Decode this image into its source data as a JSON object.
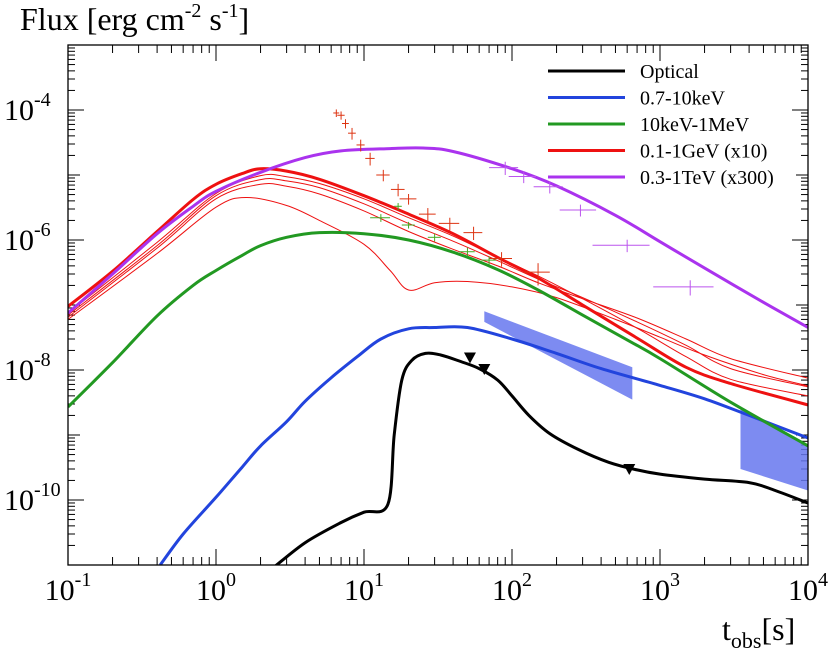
{
  "chart_data": {
    "type": "line",
    "title": "Flux [erg cm^-2 s^-1]",
    "ylabel": "Flux [erg cm^-2 s^-1]",
    "xlabel": "t_obs[s]",
    "xscale": "log",
    "yscale": "log",
    "xlim": [
      0.1,
      10000
    ],
    "ylim": [
      1e-11,
      0.001
    ],
    "x_ticks": [
      {
        "base": "10",
        "exp": "-1",
        "value": 0.1
      },
      {
        "base": "10",
        "exp": "0",
        "value": 1
      },
      {
        "base": "10",
        "exp": "1",
        "value": 10
      },
      {
        "base": "10",
        "exp": "2",
        "value": 100
      },
      {
        "base": "10",
        "exp": "3",
        "value": 1000
      },
      {
        "base": "10",
        "exp": "4",
        "value": 10000
      }
    ],
    "y_ticks": [
      {
        "base": "10",
        "exp": "-4",
        "value": 0.0001
      },
      {
        "base": "10",
        "exp": "-6",
        "value": 1e-06
      },
      {
        "base": "10",
        "exp": "-8",
        "value": 1e-08
      },
      {
        "base": "10",
        "exp": "-10",
        "value": 1e-10
      }
    ],
    "legend_position": "top-right",
    "series": [
      {
        "name": "Optical",
        "color": "#000000",
        "points": [
          [
            2.5,
            9.5e-12
          ],
          [
            4,
            2.2e-11
          ],
          [
            7,
            4.5e-11
          ],
          [
            10,
            6.5e-11
          ],
          [
            14.5,
            8.6e-11
          ],
          [
            16,
            1e-09
          ],
          [
            18,
            7e-09
          ],
          [
            21,
            1.4e-08
          ],
          [
            26,
            1.8e-08
          ],
          [
            33,
            1.7e-08
          ],
          [
            45,
            1.35e-08
          ],
          [
            60,
            1.05e-08
          ],
          [
            80,
            7e-09
          ],
          [
            100,
            4e-09
          ],
          [
            130,
            2e-09
          ],
          [
            180,
            1.05e-09
          ],
          [
            280,
            6e-10
          ],
          [
            450,
            3.8e-10
          ],
          [
            700,
            2.9e-10
          ],
          [
            1000,
            2.5e-10
          ],
          [
            2000,
            2.1e-10
          ],
          [
            4000,
            1.85e-10
          ],
          [
            6000,
            1.4e-10
          ],
          [
            10000,
            9e-11
          ]
        ]
      },
      {
        "name": "0.7-10keV",
        "color": "#2244dd",
        "points": [
          [
            0.42,
            1e-11
          ],
          [
            0.6,
            3e-11
          ],
          [
            1,
            1.1e-10
          ],
          [
            1.5,
            3.2e-10
          ],
          [
            2,
            6.8e-10
          ],
          [
            3,
            1.6e-09
          ],
          [
            4,
            3.3e-09
          ],
          [
            6,
            7.6e-09
          ],
          [
            9,
            1.6e-08
          ],
          [
            13,
            3e-08
          ],
          [
            20,
            4.3e-08
          ],
          [
            30,
            4.5e-08
          ],
          [
            50,
            4.5e-08
          ],
          [
            100,
            3e-08
          ],
          [
            200,
            1.8e-08
          ],
          [
            400,
            1.05e-08
          ],
          [
            1000,
            5.8e-09
          ],
          [
            2000,
            3.6e-09
          ],
          [
            4000,
            2e-09
          ],
          [
            10000,
            9e-10
          ]
        ]
      },
      {
        "name": "10keV-1MeV",
        "color": "#229922",
        "points": [
          [
            0.1,
            2.7e-09
          ],
          [
            0.2,
            1.3e-08
          ],
          [
            0.4,
            6.8e-08
          ],
          [
            0.7,
            2e-07
          ],
          [
            1,
            3.4e-07
          ],
          [
            1.5,
            5.8e-07
          ],
          [
            2,
            8.2e-07
          ],
          [
            3,
            1.1e-06
          ],
          [
            5,
            1.3e-06
          ],
          [
            10,
            1.25e-06
          ],
          [
            20,
            1e-06
          ],
          [
            40,
            6.5e-07
          ],
          [
            80,
            3.5e-07
          ],
          [
            150,
            1.7e-07
          ],
          [
            300,
            7e-08
          ],
          [
            600,
            2.9e-08
          ],
          [
            1000,
            1.5e-08
          ],
          [
            3000,
            3.2e-09
          ],
          [
            10000,
            6.8e-10
          ]
        ]
      },
      {
        "name": "0.1-1GeV (x10)",
        "color": "#ee1111",
        "points": [
          [
            0.1,
            9.5e-08
          ],
          [
            0.2,
            3.3e-07
          ],
          [
            0.4,
            1.35e-06
          ],
          [
            0.7,
            4.2e-06
          ],
          [
            1,
            7.2e-06
          ],
          [
            1.5,
            1.05e-05
          ],
          [
            2,
            1.25e-05
          ],
          [
            3,
            1.15e-05
          ],
          [
            5,
            8.6e-06
          ],
          [
            10,
            4.8e-06
          ],
          [
            20,
            2.5e-06
          ],
          [
            40,
            1.25e-06
          ],
          [
            80,
            5.4e-07
          ],
          [
            150,
            2.6e-07
          ],
          [
            300,
            1e-07
          ],
          [
            700,
            3.1e-08
          ],
          [
            1500,
            1.1e-08
          ],
          [
            3000,
            6.2e-09
          ],
          [
            10000,
            2.9e-09
          ]
        ]
      },
      {
        "name": "0.3-1TeV (x300)",
        "color": "#aa33ee",
        "points": [
          [
            0.1,
            7.5e-08
          ],
          [
            0.2,
            3e-07
          ],
          [
            0.4,
            1.25e-06
          ],
          [
            0.7,
            3.3e-06
          ],
          [
            1,
            5.6e-06
          ],
          [
            2,
            1.1e-05
          ],
          [
            4,
            1.85e-05
          ],
          [
            7,
            2.35e-05
          ],
          [
            15,
            2.55e-05
          ],
          [
            25,
            2.6e-05
          ],
          [
            40,
            2.3e-05
          ],
          [
            100,
            1.25e-05
          ],
          [
            200,
            6.8e-06
          ],
          [
            500,
            2.4e-06
          ],
          [
            1000,
            9.4e-07
          ],
          [
            2000,
            3.7e-07
          ],
          [
            5000,
            1.1e-07
          ],
          [
            10000,
            4.5e-08
          ]
        ]
      }
    ],
    "thin_curves": {
      "color": "#ee1111",
      "curves": [
        [
          [
            0.1,
            7.5e-08
          ],
          [
            0.4,
            9.2e-07
          ],
          [
            1,
            5.2e-06
          ],
          [
            2,
            9.8e-06
          ],
          [
            3,
            9.4e-06
          ],
          [
            5,
            7.4e-06
          ],
          [
            10,
            4.3e-06
          ],
          [
            20,
            2.2e-06
          ],
          [
            40,
            1.15e-06
          ],
          [
            80,
            5.4e-07
          ],
          [
            150,
            2.8e-07
          ],
          [
            300,
            1.25e-07
          ],
          [
            700,
            4.4e-08
          ],
          [
            1500,
            1.6e-08
          ],
          [
            3000,
            7.2e-09
          ],
          [
            10000,
            4e-09
          ]
        ],
        [
          [
            0.1,
            7e-08
          ],
          [
            0.4,
            8.2e-07
          ],
          [
            1,
            4.8e-06
          ],
          [
            2,
            8.5e-06
          ],
          [
            3,
            8.1e-06
          ],
          [
            5,
            6.4e-06
          ],
          [
            10,
            3.6e-06
          ],
          [
            20,
            1.8e-06
          ],
          [
            40,
            9.6e-07
          ],
          [
            80,
            4.8e-07
          ],
          [
            150,
            2.5e-07
          ],
          [
            300,
            1.3e-07
          ],
          [
            700,
            5.5e-08
          ],
          [
            1500,
            2.4e-08
          ],
          [
            3000,
            1.05e-08
          ],
          [
            10000,
            5.5e-09
          ]
        ],
        [
          [
            0.1,
            6.5e-08
          ],
          [
            0.4,
            7.5e-07
          ],
          [
            1,
            4.3e-06
          ],
          [
            2,
            7.2e-06
          ],
          [
            3,
            6.7e-06
          ],
          [
            5,
            5.1e-06
          ],
          [
            10,
            2.8e-06
          ],
          [
            20,
            1.35e-06
          ],
          [
            40,
            7.2e-07
          ],
          [
            80,
            4e-07
          ],
          [
            150,
            2.2e-07
          ],
          [
            300,
            1.25e-07
          ],
          [
            700,
            6.3e-08
          ],
          [
            1500,
            3e-08
          ],
          [
            3000,
            1.5e-08
          ],
          [
            10000,
            7.5e-09
          ]
        ],
        [
          [
            0.1,
            6e-08
          ],
          [
            0.4,
            6.2e-07
          ],
          [
            1,
            3.2e-06
          ],
          [
            1.6,
            4.5e-06
          ],
          [
            3,
            3.4e-06
          ],
          [
            5,
            2e-06
          ],
          [
            10,
            8.6e-07
          ],
          [
            15,
            3.4e-07
          ],
          [
            20,
            1.7e-07
          ],
          [
            30,
            2.2e-07
          ],
          [
            50,
            2.3e-07
          ],
          [
            100,
            1.9e-07
          ],
          [
            200,
            1.3e-07
          ],
          [
            500,
            6e-08
          ],
          [
            1000,
            3.2e-08
          ],
          [
            2000,
            1.7e-08
          ],
          [
            5000,
            8.5e-09
          ],
          [
            10000,
            5.7e-09
          ]
        ]
      ]
    },
    "data_points": {
      "red": {
        "color": "#dd3311",
        "points": [
          [
            6.5,
            9e-05,
            0.3,
            1.2e-05
          ],
          [
            7,
            8.3e-05,
            0.4,
            1.2e-05
          ],
          [
            7.5,
            6.2e-05,
            0.4,
            1e-05
          ],
          [
            8.3,
            4.4e-05,
            0.5,
            9e-06
          ],
          [
            9.5,
            2.9e-05,
            0.6,
            6e-06
          ],
          [
            11,
            1.8e-05,
            0.8,
            4e-06
          ],
          [
            13.5,
            1e-05,
            1.4,
            2e-06
          ],
          [
            17,
            6e-06,
            1.8,
            1.3e-06
          ],
          [
            20,
            4.3e-06,
            2.6,
            8e-07
          ],
          [
            27,
            2.5e-06,
            3.5,
            6e-07
          ],
          [
            38,
            1.8e-06,
            6,
            4e-07
          ],
          [
            55,
            1.3e-06,
            8,
            3e-07
          ],
          [
            85,
            5.2e-07,
            15,
            1.3e-07
          ],
          [
            150,
            3.2e-07,
            30,
            1.2e-07
          ]
        ]
      },
      "green": {
        "color": "#44aa22",
        "points": [
          [
            13,
            2.2e-06,
            2,
            3e-07
          ],
          [
            17,
            3.3e-06,
            1,
            4e-07
          ],
          [
            20,
            1.7e-06,
            2,
            2e-07
          ],
          [
            30,
            1.1e-06,
            3,
            1.5e-07
          ],
          [
            50,
            6.6e-07,
            6,
            1e-07
          ],
          [
            70,
            4.9e-07,
            8,
            7e-08
          ]
        ]
      },
      "purple": {
        "color": "#bb55ee",
        "points": [
          [
            90,
            1.3e-05,
            20,
            3e-06
          ],
          [
            120,
            9.5e-06,
            25,
            2e-06
          ],
          [
            180,
            6.6e-06,
            40,
            1.4e-06
          ],
          [
            290,
            2.9e-06,
            80,
            6e-07
          ],
          [
            600,
            8.3e-07,
            250,
            1.8e-07
          ],
          [
            1600,
            1.9e-07,
            700,
            5e-08
          ]
        ]
      }
    },
    "bands": {
      "color": "#6677ee",
      "polygons": [
        [
          [
            65,
            8e-08
          ],
          [
            650,
            1.1e-08
          ],
          [
            650,
            3.5e-09
          ],
          [
            65,
            5.5e-08
          ]
        ],
        [
          [
            3500,
            2.5e-09
          ],
          [
            10000,
            7e-10
          ],
          [
            10000,
            1.4e-10
          ],
          [
            3500,
            3e-10
          ]
        ]
      ]
    },
    "markers": {
      "color": "#000000",
      "points": [
        [
          52,
          1.5e-08
        ],
        [
          65,
          1e-08
        ],
        [
          620,
          2.9e-10
        ]
      ]
    }
  }
}
